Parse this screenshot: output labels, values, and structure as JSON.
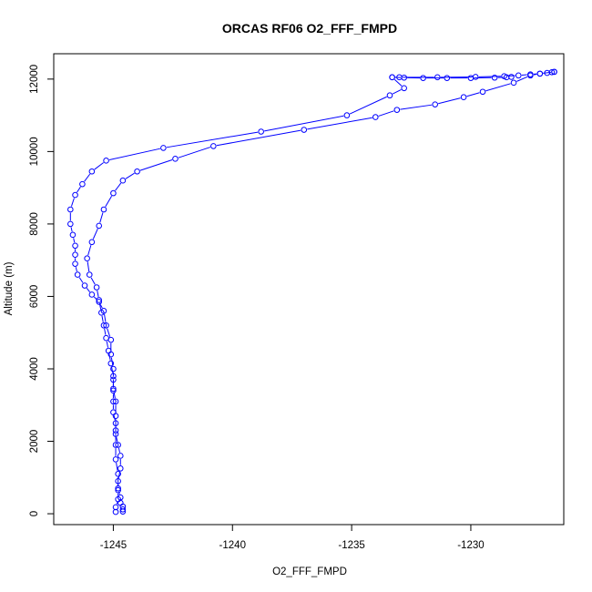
{
  "chart_data": {
    "type": "scatter",
    "title": "ORCAS RF06 O2_FFF_FMPD",
    "xlabel": "O2_FFF_FMPD",
    "ylabel": "Altitude (m)",
    "xlim": [
      -1247.5,
      -1226.1
    ],
    "ylim": [
      -300,
      12700
    ],
    "x_ticks": [
      -1245,
      -1240,
      -1235,
      -1230
    ],
    "y_ticks": [
      0,
      2000,
      4000,
      6000,
      8000,
      10000,
      12000
    ],
    "x_tick_labels": [
      "-1245",
      "-1240",
      "-1235",
      "-1230"
    ],
    "y_tick_labels": [
      "0",
      "2000",
      "4000",
      "6000",
      "8000",
      "10000",
      "12000"
    ],
    "grid": false,
    "color": "#0000ff",
    "series": [
      {
        "x": [
          -1244.9,
          -1244.9,
          -1244.8,
          -1244.8,
          -1244.8,
          -1244.7,
          -1244.7,
          -1244.8,
          -1244.9,
          -1244.9,
          -1245.0,
          -1245.0,
          -1245.0,
          -1245.0,
          -1245.0,
          -1245.1,
          -1245.1,
          -1245.3,
          -1245.4,
          -1245.6,
          -1245.9,
          -1246.2,
          -1246.5,
          -1246.6,
          -1246.6,
          -1246.6,
          -1246.7,
          -1246.8,
          -1246.8,
          -1246.6,
          -1246.3,
          -1245.9,
          -1245.3,
          -1242.9,
          -1238.8,
          -1235.2,
          -1233.4,
          -1232.8,
          -1233.3,
          -1233.0,
          -1231.4,
          -1229.8,
          -1228.6,
          -1228.0,
          -1227.5,
          -1227.1,
          -1226.8,
          -1226.6,
          -1226.5
        ],
        "y": [
          50,
          180,
          400,
          650,
          900,
          1250,
          1600,
          1900,
          2200,
          2500,
          2800,
          3100,
          3400,
          3700,
          4000,
          4400,
          4800,
          5200,
          5600,
          5850,
          6050,
          6300,
          6600,
          6900,
          7150,
          7400,
          7700,
          8000,
          8400,
          8800,
          9100,
          9450,
          9750,
          10100,
          10550,
          11000,
          11550,
          11750,
          12050,
          12050,
          12050,
          12060,
          12080,
          12100,
          12130,
          12150,
          12170,
          12190,
          12200
        ]
      },
      {
        "x": [
          -1226.5,
          -1227.1,
          -1227.5,
          -1228.2,
          -1229.5,
          -1230.3,
          -1231.5,
          -1233.1,
          -1234.0,
          -1237.0,
          -1240.8,
          -1242.4,
          -1244.0,
          -1244.6,
          -1245.0,
          -1245.4,
          -1245.6,
          -1245.9,
          -1246.1,
          -1246.0,
          -1245.7,
          -1245.6,
          -1245.5,
          -1245.4,
          -1245.3,
          -1245.2,
          -1245.1,
          -1245.0,
          -1245.0,
          -1244.9,
          -1244.9,
          -1244.9,
          -1244.9,
          -1244.9,
          -1244.8,
          -1244.8,
          -1244.7,
          -1244.7,
          -1244.6,
          -1244.6,
          -1244.6
        ],
        "y": [
          12200,
          12150,
          12100,
          11900,
          11650,
          11500,
          11300,
          11150,
          10950,
          10600,
          10150,
          9800,
          9450,
          9200,
          8850,
          8400,
          7950,
          7500,
          7050,
          6600,
          6250,
          5900,
          5550,
          5200,
          4850,
          4500,
          4150,
          3800,
          3450,
          3100,
          2700,
          2300,
          1900,
          1500,
          1100,
          700,
          450,
          300,
          200,
          120,
          60
        ]
      },
      {
        "x": [
          -1233.3,
          -1232.8,
          -1232.0,
          -1231.0,
          -1230.0,
          -1229.0,
          -1228.5,
          -1228.3
        ],
        "y": [
          12050,
          12040,
          12030,
          12030,
          12030,
          12040,
          12050,
          12060
        ]
      }
    ]
  }
}
